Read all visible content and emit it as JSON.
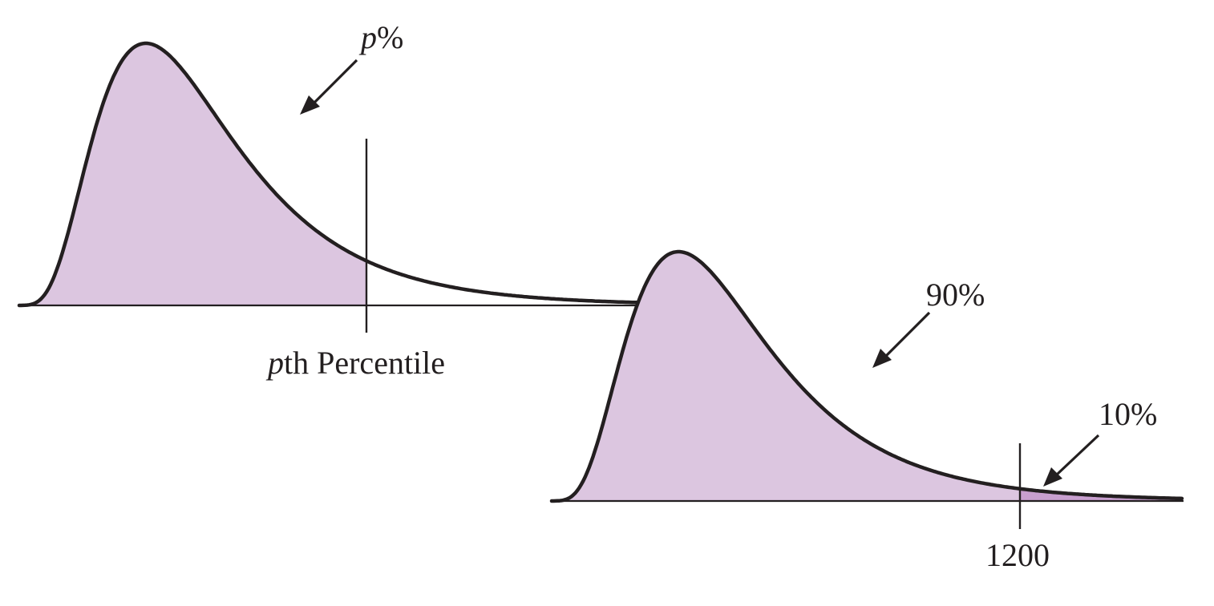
{
  "diagrams": [
    {
      "id": "left",
      "region_label": "p%",
      "region_label_italic_part": "p",
      "region_label_plain_part": "%",
      "cut_label_italic_part": "p",
      "cut_label_plain_part": "th Percentile",
      "shade_color": "#dcc6e0"
    },
    {
      "id": "right",
      "main_region_label": "90%",
      "tail_region_label": "10%",
      "cut_label": "1200",
      "shade_color": "#dcc6e0",
      "tail_shade_color": "#c89fcf"
    }
  ],
  "colors": {
    "ink": "#231f20",
    "background": "#ffffff"
  }
}
